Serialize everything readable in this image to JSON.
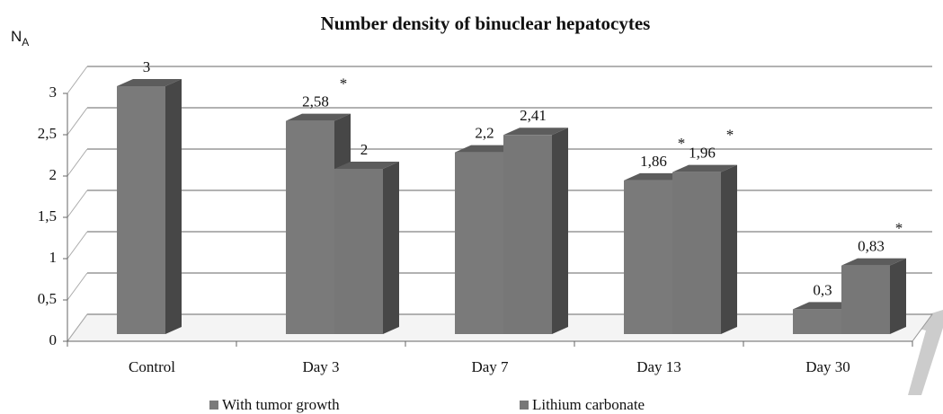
{
  "chart_data": {
    "type": "bar3d",
    "title": "Number density of binuclear hepatocytes",
    "ylabel": "N",
    "ylabel_subscript": "A",
    "categories": [
      "Control",
      "Day 3",
      "Day 7",
      "Day 13",
      "Day 30"
    ],
    "series": [
      {
        "name": "With tumor growth",
        "color": "#7a7a7a",
        "values": [
          3,
          2.58,
          2.2,
          1.86,
          0.3
        ],
        "value_labels": [
          "3",
          "2,58",
          "2,2",
          "1,86",
          "0,3"
        ],
        "significance": [
          null,
          "*",
          null,
          "*",
          "*"
        ]
      },
      {
        "name": "Lithium carbonate",
        "color": "#777777",
        "values": [
          null,
          2,
          2.41,
          1.96,
          0.83
        ],
        "value_labels": [
          null,
          "2",
          "2,41",
          "1,96",
          "0,83"
        ],
        "significance": [
          null,
          null,
          null,
          "*",
          "*"
        ]
      }
    ],
    "ylim": [
      0,
      3
    ],
    "yticks": [
      0,
      {
        "value": 0.5,
        "label": "0,5"
      },
      1,
      {
        "value": 1.5,
        "label": "1,5"
      },
      2,
      {
        "value": 2.5,
        "label": "2,5"
      },
      3
    ],
    "grid": true
  }
}
